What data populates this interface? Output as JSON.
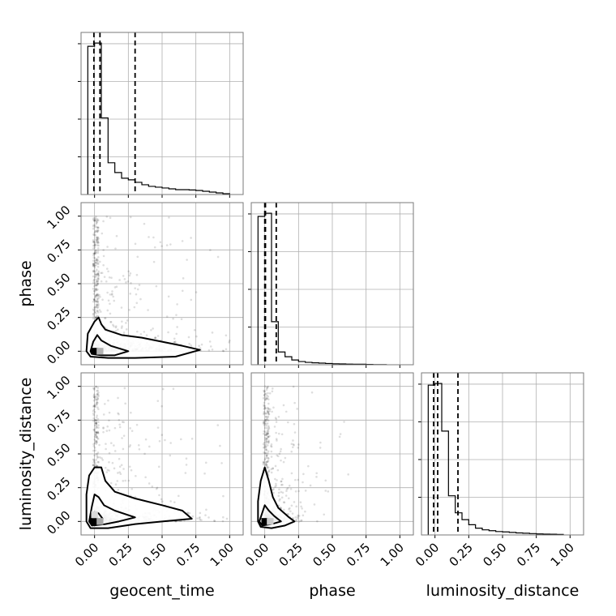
{
  "chart_data": {
    "type": "corner",
    "parameters": [
      {
        "key": "geocent_time",
        "label": "geocent_time"
      },
      {
        "key": "phase",
        "label": "phase"
      },
      {
        "key": "luminosity_distance",
        "label": "luminosity_distance"
      }
    ],
    "tick_values": [
      0.0,
      0.25,
      0.5,
      0.75,
      1.0
    ],
    "tick_labels": [
      "0.00",
      "0.25",
      "0.50",
      "0.75",
      "1.00"
    ],
    "axis_range": [
      -0.1,
      1.1
    ],
    "grid": true,
    "histograms": [
      {
        "parameter": "geocent_time",
        "bin_edges": [
          -0.05,
          0.0,
          0.05,
          0.1,
          0.15,
          0.2,
          0.25,
          0.3,
          0.35,
          0.4,
          0.45,
          0.5,
          0.55,
          0.6,
          0.65,
          0.7,
          0.75,
          0.8,
          0.85,
          0.9,
          0.95,
          1.0
        ],
        "counts": [
          0.91,
          0.93,
          0.47,
          0.195,
          0.135,
          0.1,
          0.09,
          0.075,
          0.06,
          0.05,
          0.045,
          0.04,
          0.035,
          0.03,
          0.03,
          0.028,
          0.025,
          0.02,
          0.015,
          0.01,
          0.005
        ],
        "quantiles": [
          -0.005,
          0.04,
          0.3
        ]
      },
      {
        "parameter": "phase",
        "bin_edges": [
          -0.05,
          0.0,
          0.05,
          0.1,
          0.15,
          0.2,
          0.25,
          0.3,
          0.35,
          0.4,
          0.45,
          0.5,
          0.55,
          0.6,
          0.65,
          0.7,
          0.75,
          0.8,
          0.85,
          0.9
        ],
        "counts": [
          0.93,
          0.95,
          0.27,
          0.08,
          0.05,
          0.03,
          0.02,
          0.015,
          0.012,
          0.01,
          0.008,
          0.006,
          0.005,
          0.004,
          0.003,
          0.003,
          0.002,
          0.001,
          0.001
        ],
        "quantiles": [
          0.0,
          0.005,
          0.085
        ]
      },
      {
        "parameter": "luminosity_distance",
        "bin_edges": [
          -0.05,
          0.0,
          0.05,
          0.1,
          0.15,
          0.2,
          0.25,
          0.3,
          0.35,
          0.4,
          0.45,
          0.5,
          0.55,
          0.6,
          0.65,
          0.7,
          0.75,
          0.8,
          0.85,
          0.9,
          0.95
        ],
        "counts": [
          0.88,
          0.89,
          0.61,
          0.23,
          0.13,
          0.09,
          0.06,
          0.04,
          0.03,
          0.025,
          0.02,
          0.018,
          0.015,
          0.012,
          0.01,
          0.008,
          0.006,
          0.005,
          0.004,
          0.003
        ],
        "quantiles": [
          -0.01,
          0.02,
          0.17
        ]
      }
    ],
    "scatter_panels": [
      {
        "x": "geocent_time",
        "y": "phase",
        "contours": [
          [
            [
              -0.06,
              0.0
            ],
            [
              -0.05,
              0.13
            ],
            [
              0.0,
              0.22
            ],
            [
              0.03,
              0.25
            ],
            [
              0.05,
              0.2
            ],
            [
              0.08,
              0.16
            ],
            [
              0.2,
              0.12
            ],
            [
              0.35,
              0.1
            ],
            [
              0.5,
              0.07
            ],
            [
              0.65,
              0.04
            ],
            [
              0.78,
              0.01
            ],
            [
              0.6,
              -0.04
            ],
            [
              0.3,
              -0.05
            ],
            [
              0.1,
              -0.05
            ],
            [
              -0.03,
              -0.04
            ],
            [
              -0.06,
              0.0
            ]
          ],
          [
            [
              -0.03,
              0.0
            ],
            [
              -0.01,
              0.07
            ],
            [
              0.02,
              0.12
            ],
            [
              0.05,
              0.08
            ],
            [
              0.12,
              0.04
            ],
            [
              0.25,
              0.0
            ],
            [
              0.15,
              -0.03
            ],
            [
              0.05,
              -0.03
            ],
            [
              -0.02,
              -0.02
            ],
            [
              -0.03,
              0.0
            ]
          ]
        ],
        "density_cells": [
          {
            "x": 0.0,
            "y": 0.0,
            "level": 1.0
          },
          {
            "x": 0.04,
            "y": 0.0,
            "level": 0.3
          }
        ]
      },
      {
        "x": "geocent_time",
        "y": "luminosity_distance",
        "contours": [
          [
            [
              -0.06,
              0.0
            ],
            [
              -0.06,
              0.2
            ],
            [
              -0.04,
              0.34
            ],
            [
              0.0,
              0.4
            ],
            [
              0.05,
              0.4
            ],
            [
              0.08,
              0.3
            ],
            [
              0.15,
              0.22
            ],
            [
              0.3,
              0.17
            ],
            [
              0.5,
              0.12
            ],
            [
              0.65,
              0.08
            ],
            [
              0.72,
              0.02
            ],
            [
              0.5,
              0.0
            ],
            [
              0.3,
              -0.02
            ],
            [
              0.1,
              -0.05
            ],
            [
              -0.03,
              -0.05
            ],
            [
              -0.06,
              0.0
            ]
          ],
          [
            [
              -0.04,
              0.0
            ],
            [
              -0.02,
              0.11
            ],
            [
              0.0,
              0.2
            ],
            [
              0.03,
              0.18
            ],
            [
              0.07,
              0.12
            ],
            [
              0.15,
              0.08
            ],
            [
              0.3,
              0.03
            ],
            [
              0.18,
              0.0
            ],
            [
              0.08,
              -0.02
            ],
            [
              -0.02,
              -0.03
            ],
            [
              -0.04,
              0.0
            ]
          ],
          [
            [
              -0.03,
              0.0
            ],
            [
              -0.02,
              0.05
            ],
            [
              0.0,
              0.07
            ],
            [
              0.03,
              0.06
            ],
            [
              0.06,
              0.02
            ],
            [
              0.04,
              -0.02
            ],
            [
              0.0,
              -0.03
            ],
            [
              -0.03,
              0.0
            ]
          ]
        ],
        "density_cells": [
          {
            "x": 0.0,
            "y": 0.0,
            "level": 1.0
          },
          {
            "x": 0.04,
            "y": 0.0,
            "level": 0.35
          },
          {
            "x": 0.0,
            "y": 0.05,
            "level": 0.15
          }
        ]
      },
      {
        "x": "phase",
        "y": "luminosity_distance",
        "contours": [
          [
            [
              -0.05,
              0.0
            ],
            [
              -0.05,
              0.15
            ],
            [
              -0.03,
              0.3
            ],
            [
              0.0,
              0.4
            ],
            [
              0.03,
              0.3
            ],
            [
              0.06,
              0.18
            ],
            [
              0.1,
              0.1
            ],
            [
              0.18,
              0.03
            ],
            [
              0.22,
              0.0
            ],
            [
              0.15,
              -0.03
            ],
            [
              0.05,
              -0.05
            ],
            [
              -0.03,
              -0.04
            ],
            [
              -0.05,
              0.0
            ]
          ],
          [
            [
              -0.04,
              0.0
            ],
            [
              -0.02,
              0.06
            ],
            [
              0.0,
              0.12
            ],
            [
              0.03,
              0.08
            ],
            [
              0.07,
              0.04
            ],
            [
              0.12,
              0.0
            ],
            [
              0.05,
              -0.02
            ],
            [
              -0.02,
              -0.03
            ],
            [
              -0.04,
              0.0
            ]
          ]
        ],
        "density_cells": [
          {
            "x": 0.0,
            "y": 0.0,
            "level": 1.0
          },
          {
            "x": 0.04,
            "y": 0.0,
            "level": 0.2
          }
        ]
      }
    ]
  }
}
